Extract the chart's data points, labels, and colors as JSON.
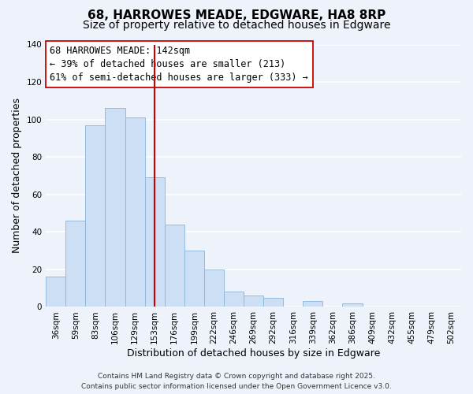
{
  "title": "68, HARROWES MEADE, EDGWARE, HA8 8RP",
  "subtitle": "Size of property relative to detached houses in Edgware",
  "xlabel": "Distribution of detached houses by size in Edgware",
  "ylabel": "Number of detached properties",
  "bar_color": "#ccdff5",
  "bar_edge_color": "#8ab4d8",
  "background_color": "#eef2fb",
  "grid_color": "#ffffff",
  "categories": [
    "36sqm",
    "59sqm",
    "83sqm",
    "106sqm",
    "129sqm",
    "153sqm",
    "176sqm",
    "199sqm",
    "222sqm",
    "246sqm",
    "269sqm",
    "292sqm",
    "316sqm",
    "339sqm",
    "362sqm",
    "386sqm",
    "409sqm",
    "432sqm",
    "455sqm",
    "479sqm",
    "502sqm"
  ],
  "values": [
    16,
    46,
    97,
    106,
    101,
    69,
    44,
    30,
    20,
    8,
    6,
    5,
    0,
    3,
    0,
    2,
    0,
    0,
    0,
    0,
    0
  ],
  "ylim": [
    0,
    140
  ],
  "yticks": [
    0,
    20,
    40,
    60,
    80,
    100,
    120,
    140
  ],
  "vline_index": 5,
  "vline_color": "#cc0000",
  "annotation_title": "68 HARROWES MEADE: 142sqm",
  "annotation_line1": "← 39% of detached houses are smaller (213)",
  "annotation_line2": "61% of semi-detached houses are larger (333) →",
  "annotation_box_color": "#ffffff",
  "annotation_box_edge": "#cc0000",
  "footer1": "Contains HM Land Registry data © Crown copyright and database right 2025.",
  "footer2": "Contains public sector information licensed under the Open Government Licence v3.0.",
  "title_fontsize": 11,
  "subtitle_fontsize": 10,
  "xlabel_fontsize": 9,
  "ylabel_fontsize": 9,
  "tick_fontsize": 7.5,
  "annotation_fontsize": 8.5,
  "footer_fontsize": 6.5
}
